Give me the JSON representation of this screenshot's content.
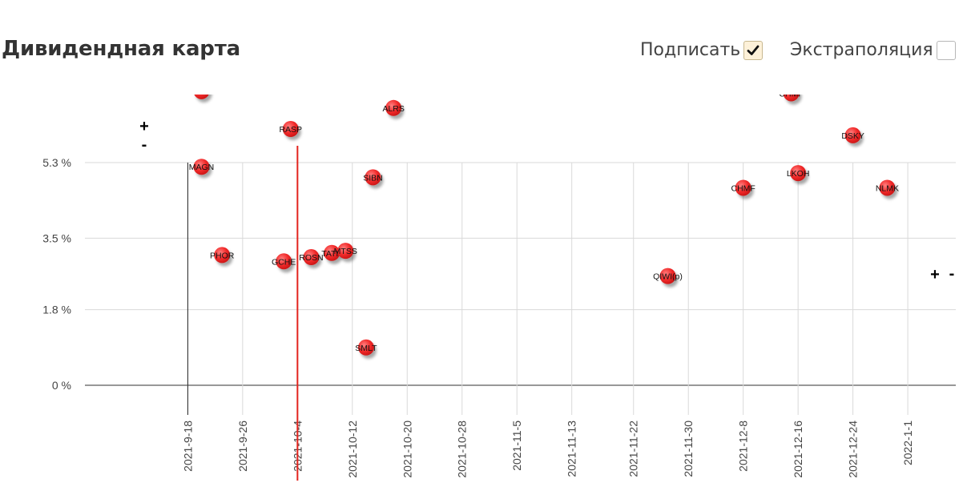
{
  "header": {
    "title": "Дивидендная карта",
    "label_option": "Подписать",
    "label_checked": true,
    "extrapolate_option": "Экстраполяция",
    "extrapolate_checked": false
  },
  "controls": {
    "left_plus": "+",
    "left_minus": "-",
    "right_plus": "+",
    "right_minus": "-"
  },
  "chart_data": {
    "type": "scatter",
    "title": "",
    "xlabel": "",
    "ylabel": "",
    "x_type": "date",
    "xlim": [
      "2021-09-03",
      "2022-01-08"
    ],
    "ylim": [
      -0.7,
      6.8
    ],
    "y_ticks": [
      0,
      1.8,
      3.5,
      5.3
    ],
    "y_tick_labels": [
      "0 %",
      "1.8 %",
      "3.5 %",
      "5.3 %"
    ],
    "x_ticks": [
      "2021-9-18",
      "2021-9-26",
      "2021-10-4",
      "2021-10-12",
      "2021-10-20",
      "2021-10-28",
      "2021-11-5",
      "2021-11-13",
      "2021-11-22",
      "2021-11-30",
      "2021-12-8",
      "2021-12-16",
      "2021-12-24",
      "2022-1-1"
    ],
    "today_marker": "2021-10-04",
    "reference_line": "2021-09-18",
    "grid": true,
    "point_color": "#ee2a2a",
    "line_color": "#e3241e",
    "points": [
      {
        "label": "",
        "x": "2021-09-20",
        "y": 7.0
      },
      {
        "label": "MAGN",
        "x": "2021-09-20",
        "y": 5.2
      },
      {
        "label": "PHOR",
        "x": "2021-09-23",
        "y": 3.1
      },
      {
        "label": "GCHE",
        "x": "2021-10-02",
        "y": 2.95
      },
      {
        "label": "RASP",
        "x": "2021-10-03",
        "y": 6.1
      },
      {
        "label": "ROSN",
        "x": "2021-10-06",
        "y": 3.05
      },
      {
        "label": "TATN",
        "x": "2021-10-09",
        "y": 3.15
      },
      {
        "label": "MTSS",
        "x": "2021-10-11",
        "y": 3.2
      },
      {
        "label": "SMLT",
        "x": "2021-10-14",
        "y": 0.9
      },
      {
        "label": "SIBN",
        "x": "2021-10-15",
        "y": 4.95
      },
      {
        "label": "ALRS",
        "x": "2021-10-18",
        "y": 6.6
      },
      {
        "label": "QIWI(p)",
        "x": "2021-11-27",
        "y": 2.6
      },
      {
        "label": "CHMF",
        "x": "2021-12-08",
        "y": 4.7
      },
      {
        "label": "CHMF",
        "x": "2021-12-15",
        "y": 6.95
      },
      {
        "label": "LKOH",
        "x": "2021-12-16",
        "y": 5.05
      },
      {
        "label": "DSKY",
        "x": "2021-12-24",
        "y": 5.95
      },
      {
        "label": "NLMK",
        "x": "2021-12-29",
        "y": 4.7
      }
    ]
  }
}
